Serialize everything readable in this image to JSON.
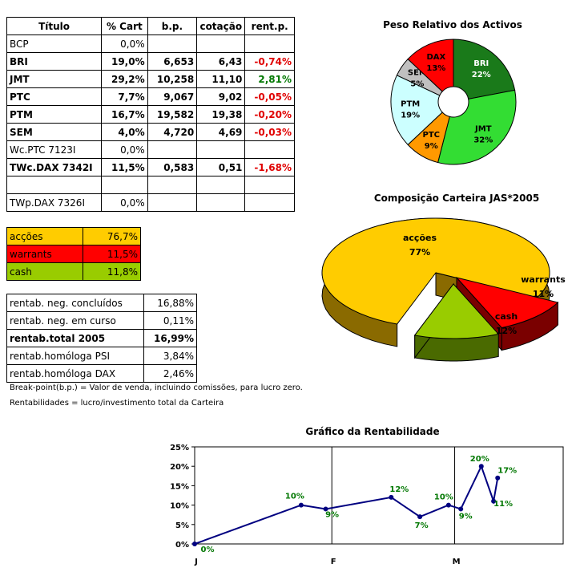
{
  "portfolio_table": {
    "headers": [
      "Título",
      "% Cart",
      "b.p.",
      "cotação",
      "rent.p."
    ],
    "rows": [
      {
        "title": "BCP",
        "cart": "0,0%",
        "bp": "",
        "cot": "",
        "rent": "",
        "bold": false,
        "sign": ""
      },
      {
        "title": "BRI",
        "cart": "19,0%",
        "bp": "6,653",
        "cot": "6,43",
        "rent": "-0,74%",
        "bold": true,
        "sign": "neg"
      },
      {
        "title": "JMT",
        "cart": "29,2%",
        "bp": "10,258",
        "cot": "11,10",
        "rent": "2,81%",
        "bold": true,
        "sign": "pos"
      },
      {
        "title": "PTC",
        "cart": "7,7%",
        "bp": "9,067",
        "cot": "9,02",
        "rent": "-0,05%",
        "bold": true,
        "sign": "neg"
      },
      {
        "title": "PTM",
        "cart": "16,7%",
        "bp": "19,582",
        "cot": "19,38",
        "rent": "-0,20%",
        "bold": true,
        "sign": "neg"
      },
      {
        "title": "SEM",
        "cart": "4,0%",
        "bp": "4,720",
        "cot": "4,69",
        "rent": "-0,03%",
        "bold": true,
        "sign": "neg"
      },
      {
        "title": "Wc.PTC 7123I",
        "cart": "0,0%",
        "bp": "",
        "cot": "",
        "rent": "",
        "bold": false,
        "sign": ""
      },
      {
        "title": "TWc.DAX 7342I",
        "cart": "11,5%",
        "bp": "0,583",
        "cot": "0,51",
        "rent": "-1,68%",
        "bold": true,
        "sign": "neg"
      },
      {
        "title": "",
        "cart": "",
        "bp": "",
        "cot": "",
        "rent": "",
        "bold": false,
        "sign": ""
      },
      {
        "title": "TWp.DAX 7326I",
        "cart": "0,0%",
        "bp": "",
        "cot": "",
        "rent": "",
        "bold": false,
        "sign": ""
      }
    ]
  },
  "allocation_table": [
    {
      "label": "acções",
      "value": "76,7%",
      "color": "#ffcc00"
    },
    {
      "label": "warrants",
      "value": "11,5%",
      "color": "#ff0000"
    },
    {
      "label": "cash",
      "value": "11,8%",
      "color": "#99cc00"
    }
  ],
  "returns_table": [
    {
      "label": "rentab. neg. concluídos",
      "value": "16,88%",
      "bold": false
    },
    {
      "label": "rentab. neg. em curso",
      "value": "0,11%",
      "bold": false
    },
    {
      "label": "rentab.total 2005",
      "value": "16,99%",
      "bold": true
    },
    {
      "label": "rentab.homóloga PSI",
      "value": "3,84%",
      "bold": false
    },
    {
      "label": "rentab.homóloga DAX",
      "value": "2,46%",
      "bold": false
    }
  ],
  "notes": {
    "line1": "Break-point(b.p.) = Valor de venda, incluindo comissões, para lucro zero.",
    "line2": "Rentabilidades = lucro/investimento total da Carteira"
  },
  "chart_data": [
    {
      "type": "pie",
      "title": "Peso Relativo dos Activos",
      "labels": [
        "BRI",
        "JMT",
        "PTC",
        "PTM",
        "SEM",
        "DAX"
      ],
      "values": [
        22,
        32,
        9,
        19,
        5,
        13
      ],
      "value_labels": [
        "22%",
        "32%",
        "9%",
        "19%",
        "5%",
        "13%"
      ],
      "colors": [
        "#1a7a1a",
        "#33dd33",
        "#ff9900",
        "#ccffff",
        "#c0c0c0",
        "#ff0000"
      ]
    },
    {
      "type": "pie",
      "title": "Composição Carteira JAS*2005",
      "labels": [
        "acções",
        "warrants",
        "cash"
      ],
      "values": [
        77,
        11,
        12
      ],
      "value_labels": [
        "77%",
        "11%",
        "12%"
      ],
      "colors": [
        "#ffcc00",
        "#ff0000",
        "#99cc00"
      ]
    },
    {
      "type": "line",
      "title": "Gráfico da Rentabilidade",
      "x": [
        0,
        52,
        64,
        96,
        110,
        124,
        130,
        140,
        146,
        148
      ],
      "values": [
        0,
        10,
        9,
        12,
        7,
        10,
        9,
        20,
        11,
        17
      ],
      "point_labels": [
        "0%",
        "10%",
        "9%",
        "12%",
        "7%",
        "10%",
        "9%",
        "20%",
        "11%",
        "17%"
      ],
      "xlim": [
        0,
        180
      ],
      "ylim": [
        0,
        25
      ],
      "yticks": [
        "0%",
        "5%",
        "10%",
        "15%",
        "20%",
        "25%"
      ],
      "xtick_labels": [
        "J",
        "F",
        "M"
      ],
      "xtick_positions": [
        0,
        67,
        127
      ],
      "series_color": "#000080",
      "label_color": "#007700"
    }
  ]
}
